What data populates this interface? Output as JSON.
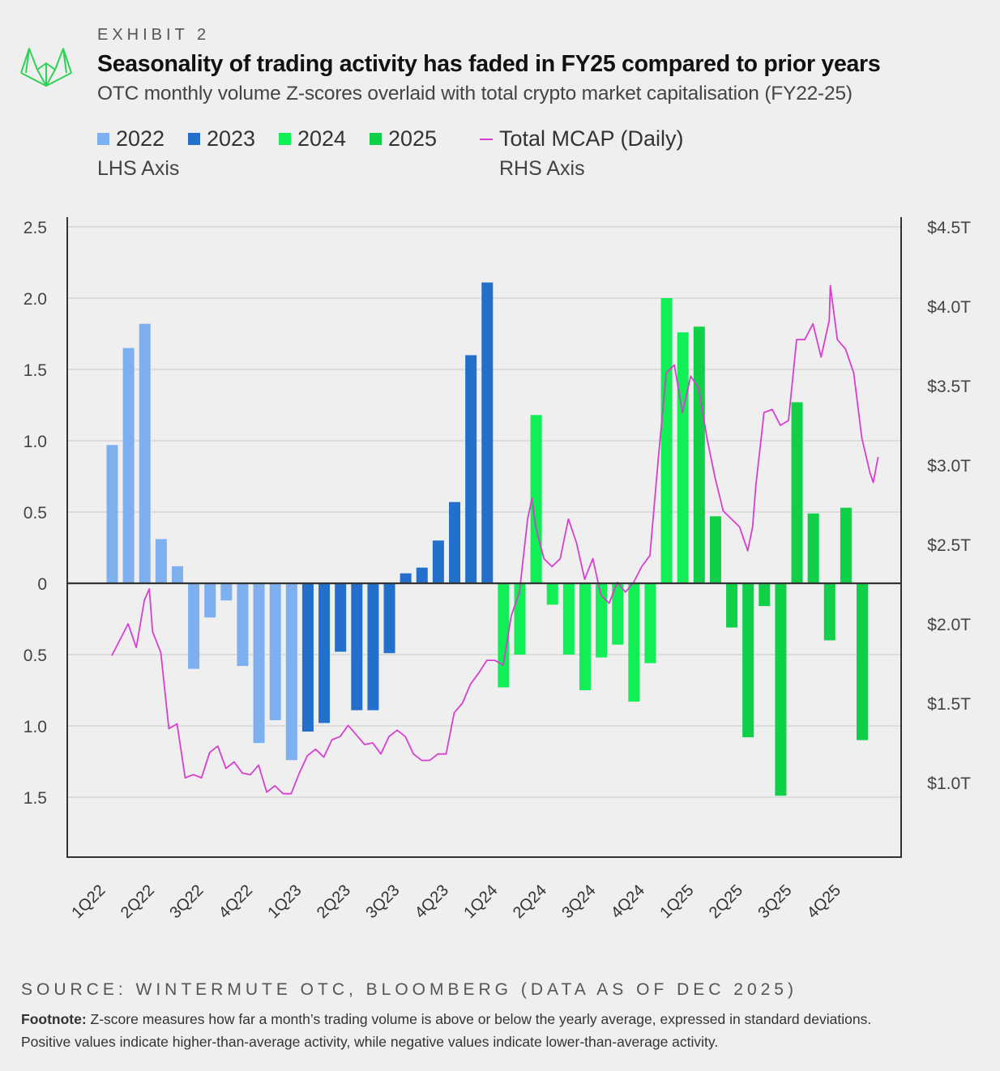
{
  "header": {
    "exhibit": "EXHIBIT 2",
    "title": "Seasonality of trading activity has faded in FY25 compared to prior years",
    "subtitle": "OTC monthly volume Z-scores overlaid with total crypto market capitalisation (FY22-25)"
  },
  "legend": {
    "items": [
      {
        "label": "2022",
        "color": "#7eb0f0"
      },
      {
        "label": "2023",
        "color": "#2270cc"
      },
      {
        "label": "2024",
        "color": "#12ee55"
      },
      {
        "label": "2025",
        "color": "#0fd048"
      }
    ],
    "lhs_note": "LHS Axis",
    "line_label": "Total MCAP (Daily)",
    "line_color": "#d63fd0",
    "rhs_note": "RHS Axis"
  },
  "chart_data": {
    "type": "bar+line",
    "grid": "horizontal",
    "legend_position": "top-left",
    "left_axis": {
      "ylim": [
        -1.92,
        2.5
      ],
      "tick_labels": [
        "2.5",
        "2.0",
        "1.5",
        "1.0",
        "0.5",
        "0",
        "0.5",
        "1.0",
        "1.5"
      ],
      "tick_values": [
        2.5,
        2.0,
        1.5,
        1.0,
        0.5,
        0,
        -0.5,
        -1.0,
        -1.5
      ]
    },
    "right_axis": {
      "unit": "$T",
      "tick_labels": [
        "$4.5T",
        "$4.0T",
        "$3.5T",
        "$3.0T",
        "$2.5T",
        "$2.0T",
        "$1.5T",
        "$1.0T"
      ],
      "tick_values": [
        4.5,
        4.0,
        3.5,
        3.0,
        2.5,
        2.0,
        1.5,
        1.0
      ]
    },
    "x_tick_labels": [
      "1Q22",
      "2Q22",
      "3Q22",
      "4Q22",
      "1Q23",
      "2Q23",
      "3Q23",
      "4Q23",
      "1Q24",
      "2Q24",
      "3Q24",
      "4Q24",
      "1Q25",
      "2Q25",
      "3Q25",
      "4Q25"
    ],
    "bar_series": [
      {
        "name": "2022",
        "months": [
          "Jan",
          "Feb",
          "Mar",
          "Apr",
          "May",
          "Jun",
          "Jul",
          "Aug",
          "Sep",
          "Oct",
          "Nov",
          "Dec"
        ],
        "values": [
          0.97,
          1.65,
          1.82,
          0.31,
          0.12,
          -0.6,
          -0.24,
          -0.12,
          -0.58,
          -1.12,
          -0.96,
          -1.24
        ]
      },
      {
        "name": "2023",
        "months": [
          "Jan",
          "Feb",
          "Mar",
          "Apr",
          "May",
          "Jun",
          "Jul",
          "Aug",
          "Sep",
          "Oct",
          "Nov",
          "Dec"
        ],
        "values": [
          -1.04,
          -0.98,
          -0.48,
          -0.89,
          -0.89,
          -0.49,
          0.07,
          0.11,
          0.3,
          0.57,
          1.6,
          2.11
        ]
      },
      {
        "name": "2024",
        "months": [
          "Jan",
          "Feb",
          "Mar",
          "Apr",
          "May",
          "Jun",
          "Jul",
          "Aug",
          "Sep",
          "Oct",
          "Nov",
          "Dec"
        ],
        "values": [
          -0.73,
          -0.5,
          1.18,
          -0.15,
          -0.5,
          -0.75,
          -0.52,
          -0.43,
          -0.83,
          -0.56,
          2.0,
          1.76
        ]
      },
      {
        "name": "2025",
        "months": [
          "Jan",
          "Feb",
          "Mar",
          "Apr",
          "May",
          "Jun",
          "Jul",
          "Aug",
          "Sep",
          "Oct",
          "Nov"
        ],
        "values": [
          1.8,
          0.47,
          -0.31,
          -1.08,
          -0.16,
          -1.49,
          1.27,
          0.49,
          -0.4,
          0.53,
          -1.1
        ]
      }
    ],
    "line_series": {
      "name": "Total MCAP (Daily)",
      "dates": [
        "2022-01-01",
        "2022-01-16",
        "2022-02-01",
        "2022-02-16",
        "2022-03-01",
        "2022-03-10",
        "2022-03-16",
        "2022-04-01",
        "2022-04-16",
        "2022-05-01",
        "2022-05-16",
        "2022-06-01",
        "2022-06-16",
        "2022-07-01",
        "2022-07-16",
        "2022-08-01",
        "2022-08-16",
        "2022-09-01",
        "2022-09-16",
        "2022-10-01",
        "2022-10-16",
        "2022-11-01",
        "2022-11-16",
        "2022-12-01",
        "2022-12-16",
        "2023-01-01",
        "2023-01-16",
        "2023-02-01",
        "2023-02-16",
        "2023-03-01",
        "2023-03-16",
        "2023-04-01",
        "2023-04-16",
        "2023-05-01",
        "2023-05-16",
        "2023-06-01",
        "2023-06-16",
        "2023-07-01",
        "2023-07-16",
        "2023-08-01",
        "2023-08-16",
        "2023-09-01",
        "2023-09-16",
        "2023-10-01",
        "2023-10-16",
        "2023-11-01",
        "2023-11-16",
        "2023-12-01",
        "2023-12-16",
        "2024-01-01",
        "2024-01-16",
        "2024-02-01",
        "2024-02-16",
        "2024-02-24",
        "2024-03-01",
        "2024-03-16",
        "2024-04-01",
        "2024-04-16",
        "2024-05-01",
        "2024-05-16",
        "2024-06-01",
        "2024-06-16",
        "2024-07-01",
        "2024-07-16",
        "2024-08-01",
        "2024-08-16",
        "2024-09-01",
        "2024-09-16",
        "2024-10-01",
        "2024-10-16",
        "2024-11-01",
        "2024-11-16",
        "2024-12-01",
        "2024-12-16",
        "2025-01-01",
        "2025-01-16",
        "2025-02-01",
        "2025-02-16",
        "2025-03-01",
        "2025-03-16",
        "2025-04-01",
        "2025-04-10",
        "2025-04-16",
        "2025-05-01",
        "2025-05-16",
        "2025-06-01",
        "2025-06-16",
        "2025-07-01",
        "2025-07-16",
        "2025-08-01",
        "2025-08-16",
        "2025-09-01",
        "2025-09-03",
        "2025-09-16",
        "2025-10-01",
        "2025-10-16",
        "2025-11-01",
        "2025-11-16",
        "2025-11-22",
        "2025-12-01"
      ],
      "values": [
        1.8,
        1.9,
        2.0,
        1.85,
        2.15,
        2.22,
        1.95,
        1.82,
        1.34,
        1.37,
        1.03,
        1.05,
        1.03,
        1.19,
        1.23,
        1.09,
        1.13,
        1.06,
        1.05,
        1.11,
        0.94,
        0.98,
        0.93,
        0.93,
        1.06,
        1.17,
        1.21,
        1.16,
        1.27,
        1.29,
        1.36,
        1.3,
        1.24,
        1.25,
        1.18,
        1.29,
        1.33,
        1.29,
        1.18,
        1.14,
        1.14,
        1.18,
        1.18,
        1.44,
        1.5,
        1.62,
        1.69,
        1.77,
        1.77,
        1.74,
        2.05,
        2.2,
        2.66,
        2.79,
        2.61,
        2.41,
        2.36,
        2.41,
        2.66,
        2.51,
        2.28,
        2.41,
        2.18,
        2.13,
        2.26,
        2.2,
        2.26,
        2.36,
        2.43,
        3.02,
        3.58,
        3.63,
        3.33,
        3.56,
        3.48,
        3.17,
        2.92,
        2.71,
        2.66,
        2.61,
        2.46,
        2.61,
        2.87,
        3.33,
        3.35,
        3.25,
        3.28,
        3.79,
        3.79,
        3.89,
        3.68,
        3.91,
        4.13,
        3.79,
        3.73,
        3.58,
        3.17,
        2.95,
        2.89,
        3.05
      ]
    }
  },
  "footer": {
    "source": "SOURCE: WINTERMUTE OTC, BLOOMBERG  (DATA AS OF DEC 2025)",
    "footnote_label": "Footnote:",
    "footnote_line1": " Z-score measures how far a month’s trading volume is above or below the yearly average, expressed in standard deviations.",
    "footnote_line2": "Positive values indicate higher-than-average activity, while negative values indicate lower-than-average activity."
  }
}
